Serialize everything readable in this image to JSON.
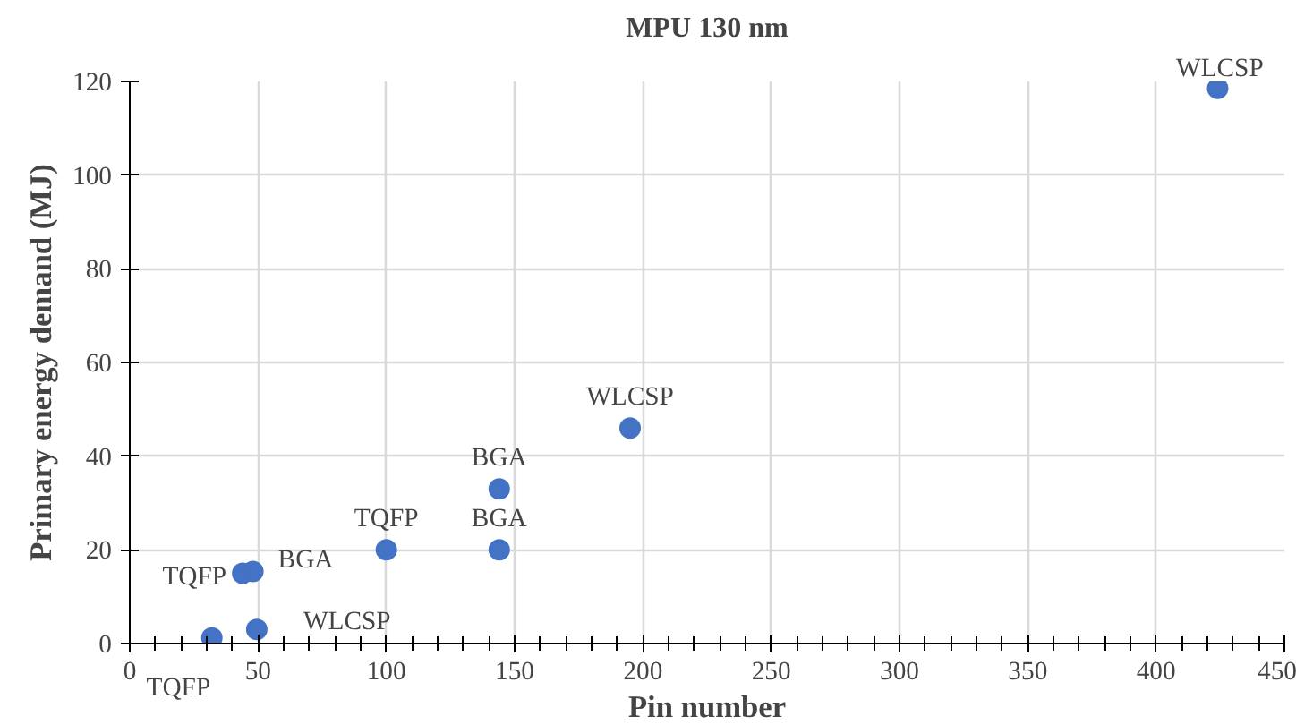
{
  "chart_data": {
    "type": "scatter",
    "title": "MPU 130 nm",
    "xlabel": "Pin number",
    "ylabel": "Primary energy demand (MJ)",
    "x": [
      32,
      44,
      48,
      49.5,
      100,
      144,
      144,
      195,
      424
    ],
    "values": [
      1.2,
      15,
      15.4,
      3,
      20,
      20,
      33,
      46,
      118.5
    ],
    "color": "#4472c4",
    "marker": "circle",
    "xlim": [
      0,
      450
    ],
    "xticks": [
      0,
      50,
      100,
      150,
      200,
      250,
      300,
      350,
      400,
      450
    ],
    "ylim": [
      0,
      120
    ],
    "yticks": [
      0,
      20,
      40,
      60,
      80,
      100,
      120
    ],
    "grid": true,
    "annotations": [
      {
        "text": "TQFP",
        "x": 32,
        "y": 1.2
      },
      {
        "text": "TQFP",
        "x": 44,
        "y": 15
      },
      {
        "text": "BGA",
        "x": 48,
        "y": 15.4
      },
      {
        "text": "WLCSP",
        "x": 49.5,
        "y": 3
      },
      {
        "text": "TQFP",
        "x": 100,
        "y": 20
      },
      {
        "text": "BGA",
        "x": 144,
        "y": 20
      },
      {
        "text": "BGA",
        "x": 144,
        "y": 33
      },
      {
        "text": "WLCSP",
        "x": 195,
        "y": 46
      },
      {
        "text": "WLCSP",
        "x": 424,
        "y": 118.5
      }
    ]
  }
}
